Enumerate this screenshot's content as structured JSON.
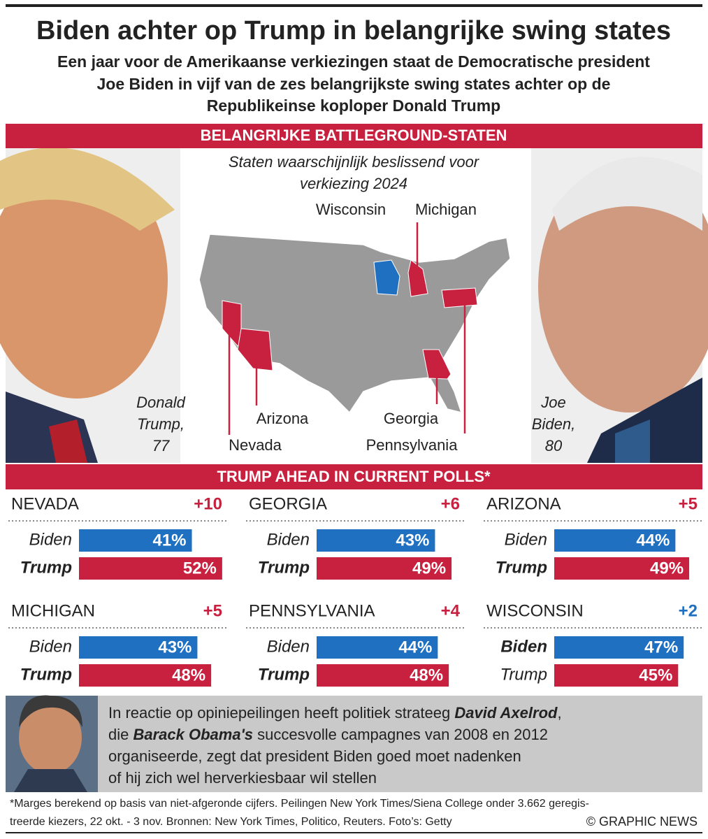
{
  "header": {
    "title": "Biden achter op Trump in belangrijke swing states",
    "subtitle": [
      "Een jaar voor de Amerikaanse verkiezingen staat de Democratische president",
      "Joe Biden in vijf van de zes belangrijkste swing states achter op de",
      "Republikeinse koploper Donald Trump"
    ]
  },
  "map": {
    "banner": "BELANGRIJKE BATTLEGROUND-STATEN",
    "caption": [
      "Staten waarschijnlijk beslissend voor",
      "verkiezing 2024"
    ],
    "labels": [
      "Wisconsin",
      "Michigan",
      "Arizona",
      "Nevada",
      "Georgia",
      "Pennsylvania"
    ]
  },
  "people": {
    "trump": [
      "Donald",
      "Trump,",
      "77"
    ],
    "biden": [
      "Joe",
      "Biden,",
      "80"
    ]
  },
  "polls": {
    "banner": "TRUMP AHEAD IN CURRENT POLLS*"
  },
  "chart_data": [
    {
      "type": "bar",
      "title": "NEVADA",
      "annotation": "+10",
      "categories": [
        "Biden",
        "Trump"
      ],
      "values": [
        41,
        52
      ],
      "value_labels": [
        "41%",
        "52%"
      ],
      "colors": [
        "#1f70c1",
        "#c8213f"
      ]
    },
    {
      "type": "bar",
      "title": "GEORGIA",
      "annotation": "+6",
      "categories": [
        "Biden",
        "Trump"
      ],
      "values": [
        43,
        49
      ],
      "value_labels": [
        "43%",
        "49%"
      ],
      "colors": [
        "#1f70c1",
        "#c8213f"
      ]
    },
    {
      "type": "bar",
      "title": "ARIZONA",
      "annotation": "+5",
      "categories": [
        "Biden",
        "Trump"
      ],
      "values": [
        44,
        49
      ],
      "value_labels": [
        "44%",
        "49%"
      ],
      "colors": [
        "#1f70c1",
        "#c8213f"
      ]
    },
    {
      "type": "bar",
      "title": "MICHIGAN",
      "annotation": "+5",
      "categories": [
        "Biden",
        "Trump"
      ],
      "values": [
        43,
        48
      ],
      "value_labels": [
        "43%",
        "48%"
      ],
      "colors": [
        "#1f70c1",
        "#c8213f"
      ]
    },
    {
      "type": "bar",
      "title": "PENNSYLVANIA",
      "annotation": "+4",
      "categories": [
        "Biden",
        "Trump"
      ],
      "values": [
        44,
        48
      ],
      "value_labels": [
        "44%",
        "48%"
      ],
      "colors": [
        "#1f70c1",
        "#c8213f"
      ]
    },
    {
      "type": "bar",
      "title": "WISCONSIN",
      "annotation": "+2",
      "categories": [
        "Biden",
        "Trump"
      ],
      "values": [
        47,
        45
      ],
      "value_labels": [
        "47%",
        "45%"
      ],
      "colors": [
        "#1f70c1",
        "#c8213f"
      ]
    }
  ],
  "quote": {
    "lines": [
      [
        {
          "text": "In reactie op opiniepeilingen heeft politiek strateeg ",
          "strong": false
        },
        {
          "text": "David Axelrod",
          "strong": true
        },
        {
          "text": ",",
          "strong": false
        }
      ],
      [
        {
          "text": "die ",
          "strong": false
        },
        {
          "text": "Barack Obama's",
          "strong": true
        },
        {
          "text": " succesvolle campagnes van 2008 en 2012",
          "strong": false
        }
      ],
      [
        {
          "text": "organiseerde, zegt dat president Biden goed moet nadenken",
          "strong": false
        }
      ],
      [
        {
          "text": "of hij zich wel herverkiesbaar wil stellen",
          "strong": false
        }
      ]
    ]
  },
  "footer": {
    "notes": [
      "*Marges berekend op basis van niet-afgeronde cijfers. Peilingen New York Times/Siena College onder 3.662 geregis-",
      "treerde kiezers, 22 okt. - 3 nov. Bronnen: New York Times, Politico, Reuters. Foto’s: Getty"
    ],
    "credit": "© GRAPHIC NEWS"
  }
}
